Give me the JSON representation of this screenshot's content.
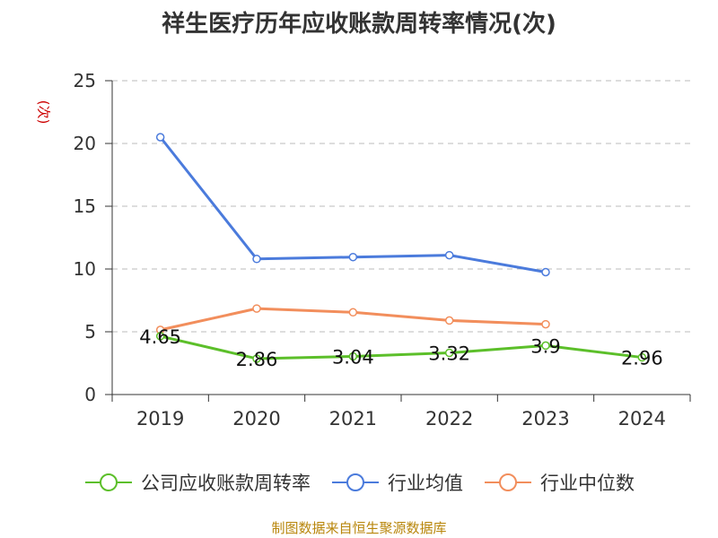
{
  "chart_data": {
    "type": "line",
    "title": "祥生医疗历年应收账款周转率情况(次)",
    "ylabel": "(次)",
    "xlabel": "",
    "categories": [
      "2019",
      "2020",
      "2021",
      "2022",
      "2023",
      "2024"
    ],
    "ylim": [
      0,
      25
    ],
    "yticks": [
      0,
      5,
      10,
      15,
      20,
      25
    ],
    "grid": true,
    "legend_position": "bottom",
    "series": [
      {
        "name": "公司应收账款周转率",
        "color": "#5cbf2a",
        "values": [
          4.65,
          2.86,
          3.04,
          3.32,
          3.9,
          2.96
        ],
        "data_labels": [
          "4.65",
          "2.86",
          "3.04",
          "3.32",
          "3.9",
          "2.96"
        ]
      },
      {
        "name": "行业均值",
        "color": "#4b7bdc",
        "values": [
          20.5,
          10.8,
          10.95,
          11.1,
          9.75,
          null
        ]
      },
      {
        "name": "行业中位数",
        "color": "#f28e5c",
        "values": [
          5.15,
          6.85,
          6.55,
          5.9,
          5.6,
          null
        ]
      }
    ]
  },
  "source": "制图数据来自恒生聚源数据库"
}
